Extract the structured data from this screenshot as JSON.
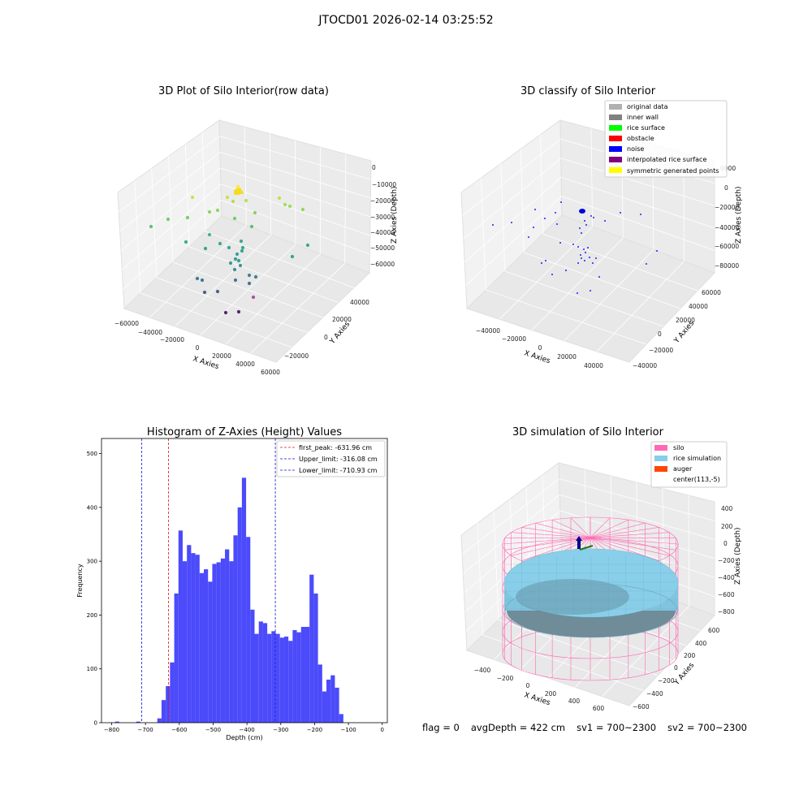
{
  "suptitle": "JTOCD01 2026-02-14 03:25:52",
  "status": {
    "flag": "flag = 0",
    "avg_depth": "avgDepth = 422 cm",
    "sv1": "sv1 = 700~2300",
    "sv2": "sv2 = 700~2300"
  },
  "chart_data": [
    {
      "type": "scatter",
      "title": "3D Plot of Silo Interior(row data)",
      "xlabel": "X Axies",
      "ylabel": "Y Axies",
      "zlabel": "Z Axies (Depth)",
      "x_ticks": [
        "−60000",
        "−40000",
        "−20000",
        "0",
        "20000",
        "40000",
        "60000"
      ],
      "y_ticks": [
        "−20000",
        "0",
        "20000",
        "40000"
      ],
      "z_ticks": [
        "0",
        "−10000",
        "−20000",
        "−30000",
        "−40000",
        "−50000",
        "−60000"
      ],
      "grid": true
    },
    {
      "type": "scatter",
      "title": "3D classify of Silo Interior",
      "xlabel": "X Axies",
      "ylabel": "Y Axies",
      "zlabel": "Z Axies (Depth)",
      "x_ticks": [
        "−40000",
        "−20000",
        "0",
        "20000",
        "40000"
      ],
      "y_ticks": [
        "−40000",
        "−20000",
        "0",
        "20000",
        "40000",
        "60000"
      ],
      "z_ticks": [
        "0",
        "−20000",
        "−40000",
        "−60000",
        "−80000"
      ],
      "z_tick_partial": "0000",
      "legend_position": "top-right",
      "legend": [
        {
          "label": "original data",
          "color": "#b0b0b0"
        },
        {
          "label": "inner wall",
          "color": "#808080"
        },
        {
          "label": "rice surface",
          "color": "#00ff00"
        },
        {
          "label": "obstacle",
          "color": "#ff0000"
        },
        {
          "label": "noise",
          "color": "#0000ff"
        },
        {
          "label": "interpolated rice surface",
          "color": "#800080"
        },
        {
          "label": "symmetric generated points",
          "color": "#ffff00"
        }
      ],
      "grid": true
    },
    {
      "type": "bar",
      "title": "Histogram of Z-Axies (Height) Values",
      "xlabel": "Depth (cm)",
      "ylabel": "Frequency",
      "xlim": [
        -830,
        15
      ],
      "ylim": [
        0,
        528
      ],
      "x_ticks": [
        -800,
        -700,
        -600,
        -500,
        -400,
        -300,
        -200,
        -100,
        0
      ],
      "x_tick_labels": [
        "−800",
        "−700",
        "−600",
        "−500",
        "−400",
        "−300",
        "−200",
        "−100",
        "0"
      ],
      "y_ticks": [
        0,
        100,
        200,
        300,
        400,
        500
      ],
      "bin_start": -790,
      "bin_width": 12.5,
      "values": [
        2,
        0,
        0,
        0,
        0,
        2,
        0,
        0,
        0,
        0,
        8,
        42,
        68,
        112,
        240,
        357,
        300,
        330,
        315,
        312,
        278,
        285,
        262,
        295,
        298,
        305,
        322,
        300,
        348,
        400,
        455,
        345,
        210,
        165,
        188,
        185,
        165,
        170,
        165,
        158,
        160,
        152,
        172,
        168,
        178,
        178,
        275,
        240,
        108,
        58,
        80,
        88,
        65,
        16
      ],
      "color": "#4b4bfb",
      "vlines": [
        {
          "label": "first_peak: -631.96 cm",
          "x": -631.96,
          "color": "#e8101a"
        },
        {
          "label": "Upper_limit: -316.08 cm",
          "x": -316.08,
          "color": "#1515d8"
        },
        {
          "label": "Lower_limit: -710.93 cm",
          "x": -710.93,
          "color": "#1515d8"
        }
      ],
      "legend_position": "top-right",
      "grid": false
    },
    {
      "type": "scatter",
      "title": "3D simulation of Silo Interior",
      "xlabel": "X Axies",
      "ylabel": "Y Axies",
      "zlabel": "Z Axies (Depth)",
      "x_ticks": [
        "−400",
        "−200",
        "0",
        "200",
        "400",
        "600"
      ],
      "y_ticks": [
        "−600",
        "−400",
        "−200",
        "0",
        "200",
        "400",
        "600"
      ],
      "z_ticks": [
        "400",
        "200",
        "0",
        "−200",
        "−400",
        "−600",
        "−800"
      ],
      "legend_position": "top-right",
      "legend": [
        {
          "label": "silo",
          "color": "#ff69b4"
        },
        {
          "label": "rice simulation",
          "color": "#87ceeb"
        },
        {
          "label": "auger",
          "color": "#ff4500"
        },
        {
          "label": "center(113,-5)",
          "color": ""
        }
      ],
      "grid": true
    }
  ]
}
